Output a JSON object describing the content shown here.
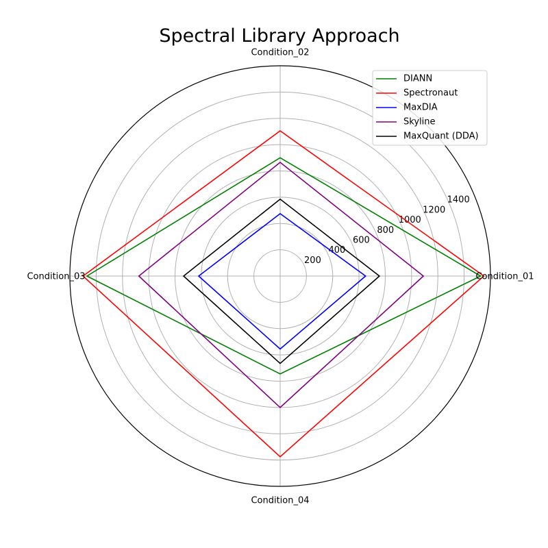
{
  "chart_data": {
    "type": "radar",
    "title": "Spectral Library Approach",
    "categories": [
      "Condition_01",
      "Condition_02",
      "Condition_03",
      "Condition_04"
    ],
    "r_ticks": [
      200,
      400,
      600,
      800,
      1000,
      1200,
      1400
    ],
    "r_max": 1600,
    "grid": true,
    "legend_position": "top-right",
    "series": [
      {
        "name": "DIANN",
        "color": "#008000",
        "values": [
          1525,
          900,
          1470,
          745
        ]
      },
      {
        "name": "Spectronaut",
        "color": "#ff0000",
        "values": [
          1550,
          1105,
          1500,
          1375
        ]
      },
      {
        "name": "MaxDIA",
        "color": "#0000ff",
        "values": [
          650,
          475,
          620,
          555
        ]
      },
      {
        "name": "Skyline",
        "color": "#800080",
        "values": [
          1090,
          865,
          1075,
          1000
        ]
      },
      {
        "name": "MaxQuant (DDA)",
        "color": "#000000",
        "values": [
          755,
          585,
          735,
          665
        ]
      }
    ]
  }
}
